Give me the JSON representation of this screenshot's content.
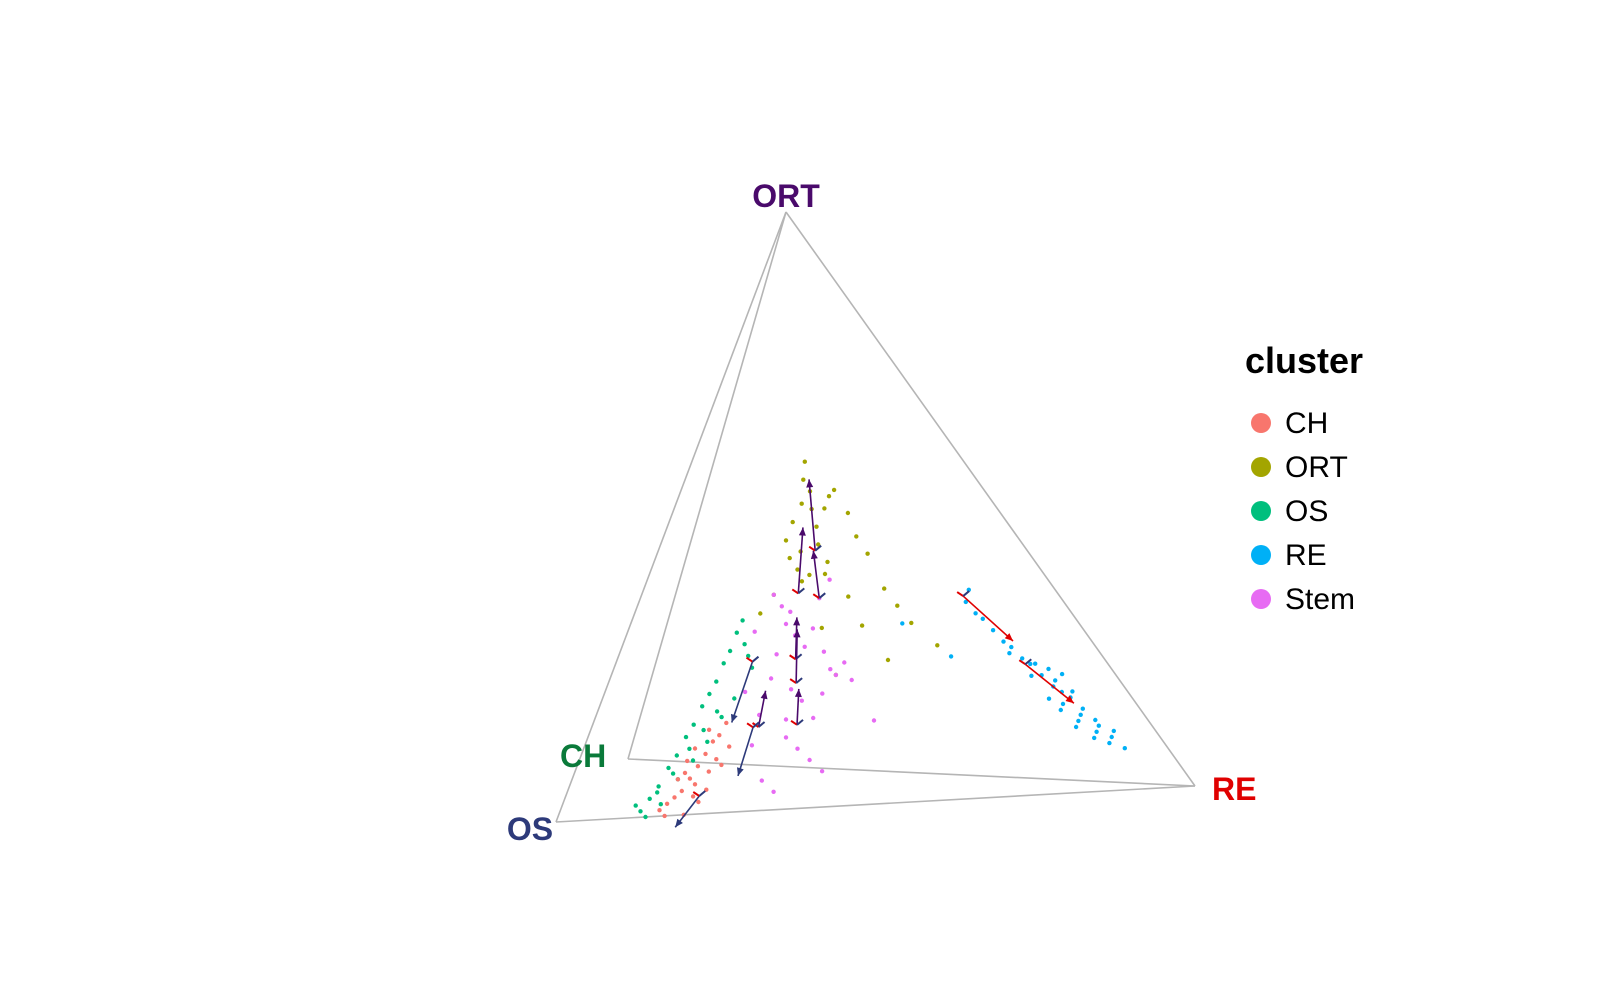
{
  "chart_data": {
    "type": "scatter",
    "title": "",
    "projection": "3D simplex (tetrahedron) with velocity arrows",
    "vertices": [
      {
        "label": "ORT",
        "color": "#4a0a6b"
      },
      {
        "label": "RE",
        "color": "#e00000"
      },
      {
        "label": "OS",
        "color": "#2d3a7a"
      },
      {
        "label": "CH",
        "color": "#0a7a3a"
      }
    ],
    "edge_color": "#b5b5b5",
    "legend": {
      "title": "cluster",
      "placement": "right",
      "entries": [
        {
          "name": "CH",
          "color": "#F8766D"
        },
        {
          "name": "ORT",
          "color": "#A3A500"
        },
        {
          "name": "OS",
          "color": "#00BF7D"
        },
        {
          "name": "RE",
          "color": "#00B0F6"
        },
        {
          "name": "Stem",
          "color": "#E76BF3"
        }
      ]
    },
    "arrow_colors": {
      "primary": "#4a0a6b",
      "secondary": "#e00000",
      "tertiary": "#2d3a7a"
    },
    "series": [
      {
        "name": "ORT",
        "color": "#A3A500",
        "x": [
          0.42,
          0.43,
          0.44,
          0.44,
          0.45,
          0.45,
          0.41,
          0.38,
          0.36,
          0.37,
          0.39,
          0.4,
          0.46,
          0.47,
          0.48,
          0.5,
          0.52,
          0.55,
          0.56,
          0.58,
          0.6,
          0.62,
          0.64,
          0.51,
          0.53,
          0.33,
          0.3,
          0.44,
          0.46,
          0.68,
          0.57,
          0.4,
          0.42
        ],
        "y": [
          0.55,
          0.58,
          0.53,
          0.5,
          0.47,
          0.44,
          0.51,
          0.48,
          0.45,
          0.42,
          0.4,
          0.38,
          0.39,
          0.41,
          0.5,
          0.52,
          0.53,
          0.49,
          0.45,
          0.42,
          0.36,
          0.33,
          0.3,
          0.35,
          0.3,
          0.36,
          0.33,
          0.3,
          0.22,
          0.26,
          0.24,
          0.43,
          0.39
        ]
      },
      {
        "name": "Stem",
        "color": "#E76BF3",
        "x": [
          0.35,
          0.36,
          0.38,
          0.4,
          0.42,
          0.44,
          0.46,
          0.48,
          0.34,
          0.33,
          0.37,
          0.39,
          0.41,
          0.43,
          0.45,
          0.47,
          0.36,
          0.38,
          0.4,
          0.42,
          0.31,
          0.3,
          0.32,
          0.34,
          0.49,
          0.52,
          0.29,
          0.33,
          0.37,
          0.28,
          0.44,
          0.36
        ],
        "y": [
          0.34,
          0.31,
          0.29,
          0.27,
          0.3,
          0.26,
          0.22,
          0.24,
          0.26,
          0.22,
          0.2,
          0.18,
          0.15,
          0.19,
          0.23,
          0.38,
          0.12,
          0.1,
          0.08,
          0.06,
          0.16,
          0.11,
          0.05,
          0.03,
          0.21,
          0.14,
          0.3,
          0.36,
          0.33,
          0.2,
          0.35,
          0.15
        ]
      },
      {
        "name": "OS",
        "color": "#00BF7D",
        "x": [
          0.15,
          0.16,
          0.17,
          0.18,
          0.19,
          0.2,
          0.21,
          0.22,
          0.23,
          0.24,
          0.25,
          0.26,
          0.27,
          0.14,
          0.16,
          0.18,
          0.2,
          0.22,
          0.24,
          0.26,
          0.13,
          0.15,
          0.17,
          0.19,
          0.21,
          0.23,
          0.12,
          0.14,
          0.28,
          0.29
        ],
        "y": [
          0.05,
          0.08,
          0.1,
          0.13,
          0.15,
          0.18,
          0.2,
          0.22,
          0.25,
          0.27,
          0.3,
          0.32,
          0.28,
          0.03,
          0.02,
          0.06,
          0.09,
          0.12,
          0.16,
          0.19,
          0.01,
          0.04,
          0.07,
          0.11,
          0.14,
          0.17,
          0.02,
          0.0,
          0.26,
          0.24
        ]
      },
      {
        "name": "CH",
        "color": "#F8766D",
        "x": [
          0.2,
          0.21,
          0.22,
          0.23,
          0.24,
          0.25,
          0.19,
          0.18,
          0.17,
          0.2,
          0.22,
          0.24,
          0.21,
          0.23,
          0.19,
          0.18,
          0.26,
          0.25,
          0.22,
          0.2,
          0.17,
          0.16,
          0.21,
          0.23,
          0.19
        ],
        "y": [
          0.06,
          0.08,
          0.1,
          0.12,
          0.13,
          0.15,
          0.04,
          0.03,
          0.02,
          0.11,
          0.14,
          0.09,
          0.05,
          0.07,
          0.09,
          0.06,
          0.11,
          0.08,
          0.02,
          0.0,
          0.0,
          0.01,
          0.03,
          0.04,
          0.07
        ]
      },
      {
        "name": "RE",
        "color": "#00B0F6",
        "x": [
          0.78,
          0.79,
          0.8,
          0.81,
          0.82,
          0.83,
          0.84,
          0.85,
          0.86,
          0.87,
          0.88,
          0.89,
          0.9,
          0.91,
          0.86,
          0.88,
          0.9,
          0.92,
          0.87,
          0.89,
          0.91,
          0.93,
          0.85,
          0.87,
          0.89,
          0.91,
          0.93,
          0.88,
          0.9,
          0.84,
          0.82,
          0.86,
          0.88,
          0.9,
          0.8,
          0.62,
          0.7
        ],
        "y": [
          0.33,
          0.31,
          0.3,
          0.28,
          0.26,
          0.25,
          0.23,
          0.22,
          0.2,
          0.18,
          0.17,
          0.16,
          0.14,
          0.12,
          0.14,
          0.12,
          0.1,
          0.09,
          0.11,
          0.09,
          0.08,
          0.07,
          0.16,
          0.15,
          0.13,
          0.11,
          0.1,
          0.19,
          0.17,
          0.2,
          0.24,
          0.22,
          0.21,
          0.2,
          0.35,
          0.3,
          0.24
        ]
      }
    ],
    "arrows": [
      {
        "x": 0.44,
        "y": 0.43,
        "dx": 0.0,
        "dy": 0.12,
        "color": "#4a0a6b"
      },
      {
        "x": 0.44,
        "y": 0.35,
        "dx": -0.005,
        "dy": 0.08,
        "color": "#4a0a6b"
      },
      {
        "x": 0.39,
        "y": 0.36,
        "dx": 0.02,
        "dy": 0.11,
        "color": "#4a0a6b"
      },
      {
        "x": 0.38,
        "y": 0.25,
        "dx": 0.005,
        "dy": 0.07,
        "color": "#4a0a6b"
      },
      {
        "x": 0.38,
        "y": 0.21,
        "dx": 0.005,
        "dy": 0.09,
        "color": "#4a0a6b"
      },
      {
        "x": 0.38,
        "y": 0.14,
        "dx": 0.005,
        "dy": 0.06,
        "color": "#4a0a6b"
      },
      {
        "x": 0.31,
        "y": 0.14,
        "dx": 0.01,
        "dy": 0.06,
        "color": "#4a0a6b"
      },
      {
        "x": 0.29,
        "y": 0.25,
        "dx": -0.03,
        "dy": -0.1,
        "color": "#2d3a7a"
      },
      {
        "x": 0.3,
        "y": 0.14,
        "dx": -0.02,
        "dy": -0.08,
        "color": "#2d3a7a"
      },
      {
        "x": 0.22,
        "y": 0.03,
        "dx": -0.03,
        "dy": -0.05,
        "color": "#2d3a7a"
      },
      {
        "x": 0.78,
        "y": 0.34,
        "dx": 0.06,
        "dy": -0.08,
        "color": "#e00000"
      },
      {
        "x": 0.84,
        "y": 0.22,
        "dx": 0.05,
        "dy": -0.07,
        "color": "#e00000"
      }
    ]
  }
}
